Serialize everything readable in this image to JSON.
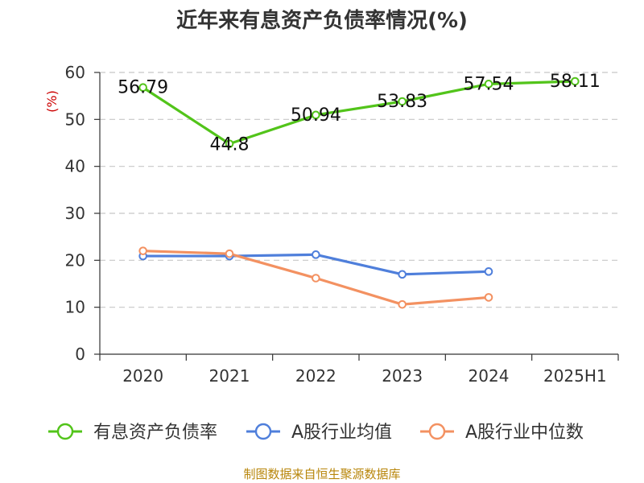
{
  "chart_data": {
    "type": "line",
    "title": "近年来有息资产负债率情况(%)",
    "ylabel": "(%)",
    "xlabel": "",
    "categories": [
      "2020",
      "2021",
      "2022",
      "2023",
      "2024",
      "2025H1"
    ],
    "ylim": [
      0,
      60
    ],
    "yticks": [
      0,
      10,
      20,
      30,
      40,
      50,
      60
    ],
    "grid": true,
    "legend_position": "bottom",
    "series": [
      {
        "name": "有息资产负债率",
        "color": "#52c41a",
        "values": [
          56.79,
          44.8,
          50.94,
          53.83,
          57.54,
          58.11
        ],
        "labels": [
          "56.79",
          "44.8",
          "50.94",
          "53.83",
          "57.54",
          "58.11"
        ]
      },
      {
        "name": "A股行业均值",
        "color": "#4f7fdb",
        "values": [
          20.9,
          20.9,
          21.2,
          17.0,
          17.6,
          null
        ]
      },
      {
        "name": "A股行业中位数",
        "color": "#f39161",
        "values": [
          22.0,
          21.4,
          16.2,
          10.6,
          12.1,
          null
        ]
      }
    ],
    "source": "制图数据来自恒生聚源数据库"
  }
}
